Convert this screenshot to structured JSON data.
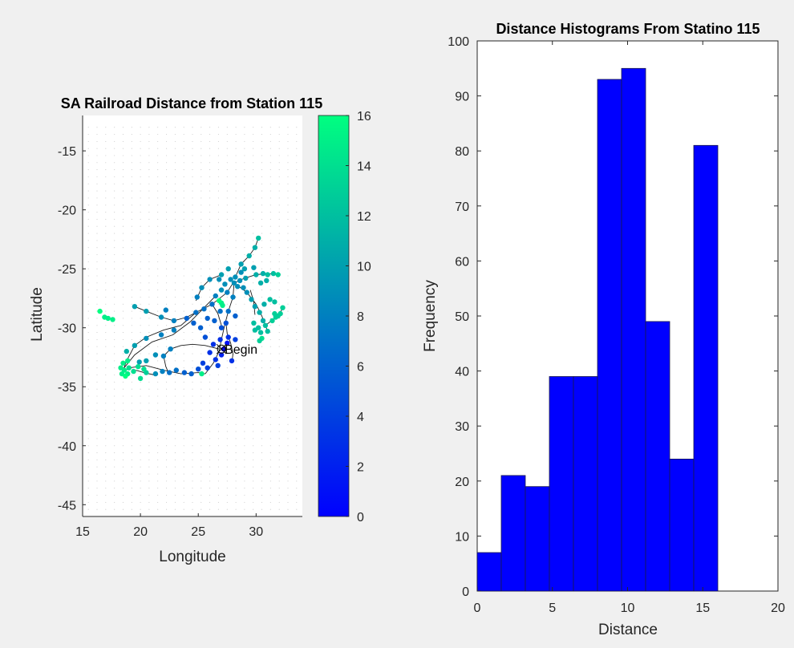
{
  "chart_data": [
    {
      "type": "scatter",
      "title": "SA Railroad Distance from Station 115",
      "xlabel": "Longitude",
      "ylabel": "Latitude",
      "xlim": [
        15,
        34
      ],
      "ylim": [
        -46,
        -12
      ],
      "xticks": [
        "15",
        "20",
        "25",
        "30"
      ],
      "yticks": [
        "-15",
        "-20",
        "-25",
        "-30",
        "-35",
        "-40",
        "-45"
      ],
      "annotation": "Begin",
      "annotation_point": [
        27.0,
        -31.8
      ],
      "background_dots": true,
      "colormap": "winter",
      "colorbar": {
        "lim": [
          0,
          16
        ],
        "ticks": [
          "16",
          "14",
          "12",
          "10",
          "8",
          "6",
          "4",
          "2",
          "0"
        ]
      },
      "rail_lines": [
        [
          [
            18.4,
            -33.9
          ],
          [
            19.0,
            -33.4
          ],
          [
            20.5,
            -33.2
          ],
          [
            22.0,
            -33.6
          ],
          [
            23.5,
            -33.9
          ],
          [
            25.0,
            -33.8
          ],
          [
            25.6,
            -33.9
          ]
        ],
        [
          [
            18.4,
            -33.9
          ],
          [
            18.8,
            -32.8
          ],
          [
            19.5,
            -31.5
          ],
          [
            20.5,
            -30.8
          ],
          [
            22.0,
            -30.2
          ],
          [
            23.5,
            -29.8
          ],
          [
            24.8,
            -28.7
          ],
          [
            26.2,
            -28.0
          ],
          [
            27.5,
            -27.0
          ],
          [
            28.0,
            -26.2
          ]
        ],
        [
          [
            18.5,
            -33.5
          ],
          [
            19.5,
            -32.3
          ],
          [
            21.0,
            -31.2
          ],
          [
            22.8,
            -30.6
          ],
          [
            24.3,
            -29.5
          ],
          [
            25.5,
            -28.3
          ],
          [
            26.5,
            -27.3
          ]
        ],
        [
          [
            25.6,
            -33.9
          ],
          [
            26.3,
            -33.0
          ],
          [
            26.8,
            -32.0
          ],
          [
            27.0,
            -31.0
          ],
          [
            27.3,
            -29.7
          ],
          [
            27.6,
            -28.6
          ],
          [
            28.0,
            -27.4
          ],
          [
            28.1,
            -26.2
          ]
        ],
        [
          [
            27.9,
            -33.0
          ],
          [
            28.0,
            -32.2
          ],
          [
            27.8,
            -31.3
          ],
          [
            27.5,
            -30.5
          ],
          [
            27.4,
            -29.6
          ]
        ],
        [
          [
            22.5,
            -34.0
          ],
          [
            22.2,
            -33.3
          ],
          [
            22.0,
            -32.4
          ],
          [
            22.6,
            -31.8
          ],
          [
            23.5,
            -31.5
          ],
          [
            24.5,
            -31.4
          ],
          [
            25.6,
            -31.5
          ],
          [
            26.8,
            -31.8
          ]
        ],
        [
          [
            19.6,
            -33.6
          ],
          [
            20.3,
            -33.8
          ],
          [
            21.2,
            -34.0
          ]
        ],
        [
          [
            28.1,
            -26.2
          ],
          [
            29.0,
            -25.8
          ],
          [
            30.0,
            -25.5
          ],
          [
            31.0,
            -25.4
          ],
          [
            31.9,
            -25.5
          ]
        ],
        [
          [
            28.2,
            -25.7
          ],
          [
            28.7,
            -24.6
          ],
          [
            29.4,
            -23.9
          ],
          [
            29.9,
            -23.2
          ],
          [
            30.2,
            -22.4
          ]
        ],
        [
          [
            28.1,
            -26.2
          ],
          [
            29.2,
            -27.0
          ],
          [
            30.0,
            -28.0
          ],
          [
            30.5,
            -29.0
          ],
          [
            30.8,
            -29.8
          ],
          [
            31.0,
            -30.3
          ]
        ],
        [
          [
            30.8,
            -29.8
          ],
          [
            31.6,
            -29.2
          ],
          [
            32.1,
            -28.7
          ],
          [
            32.3,
            -28.3
          ]
        ],
        [
          [
            27.0,
            -25.5
          ],
          [
            26.0,
            -25.9
          ],
          [
            25.3,
            -26.6
          ],
          [
            24.8,
            -27.7
          ]
        ],
        [
          [
            24.8,
            -28.7
          ],
          [
            24.0,
            -29.1
          ],
          [
            22.9,
            -29.4
          ],
          [
            21.8,
            -29.1
          ],
          [
            20.5,
            -28.6
          ],
          [
            19.5,
            -28.2
          ]
        ],
        [
          [
            26.2,
            -28.0
          ],
          [
            26.7,
            -28.8
          ],
          [
            27.0,
            -29.8
          ]
        ],
        [
          [
            29.5,
            -26.8
          ],
          [
            29.8,
            -27.8
          ],
          [
            29.9,
            -28.9
          ]
        ]
      ],
      "points_color_scale": "distance 0-16",
      "points": [
        [
          27.2,
          -31.8,
          0
        ],
        [
          27.5,
          -31.3,
          1
        ],
        [
          27.0,
          -32.3,
          2
        ],
        [
          26.5,
          -32.7,
          3
        ],
        [
          26.0,
          -32.1,
          3
        ],
        [
          27.9,
          -32.8,
          3
        ],
        [
          27.6,
          -30.8,
          3
        ],
        [
          25.8,
          -33.4,
          4
        ],
        [
          25.4,
          -33.0,
          4
        ],
        [
          26.7,
          -33.2,
          4
        ],
        [
          28.2,
          -31.0,
          4
        ],
        [
          26.9,
          -31.0,
          3
        ],
        [
          26.3,
          -31.4,
          3
        ],
        [
          25.0,
          -33.5,
          5
        ],
        [
          24.4,
          -33.9,
          6
        ],
        [
          23.8,
          -33.8,
          6
        ],
        [
          23.1,
          -33.6,
          7
        ],
        [
          22.5,
          -33.8,
          7
        ],
        [
          21.9,
          -33.7,
          8
        ],
        [
          21.3,
          -33.9,
          9
        ],
        [
          25.6,
          -30.8,
          5
        ],
        [
          25.2,
          -30.0,
          6
        ],
        [
          24.6,
          -29.6,
          6
        ],
        [
          24.0,
          -29.2,
          6
        ],
        [
          25.8,
          -29.2,
          6
        ],
        [
          26.4,
          -29.4,
          6
        ],
        [
          27.0,
          -30.0,
          5
        ],
        [
          26.2,
          -28.0,
          7
        ],
        [
          25.5,
          -28.4,
          7
        ],
        [
          24.8,
          -28.7,
          7
        ],
        [
          26.9,
          -28.6,
          7
        ],
        [
          27.4,
          -29.6,
          5
        ],
        [
          27.6,
          -28.6,
          7
        ],
        [
          28.2,
          -29.0,
          6
        ],
        [
          26.5,
          -27.3,
          8
        ],
        [
          27.0,
          -26.8,
          9
        ],
        [
          27.5,
          -27.0,
          8
        ],
        [
          28.0,
          -27.4,
          8
        ],
        [
          28.1,
          -26.2,
          9
        ],
        [
          28.4,
          -26.5,
          9
        ],
        [
          27.8,
          -25.9,
          9
        ],
        [
          28.6,
          -26.0,
          9
        ],
        [
          28.9,
          -26.6,
          9
        ],
        [
          27.3,
          -26.3,
          9
        ],
        [
          28.2,
          -25.7,
          9
        ],
        [
          28.7,
          -25.3,
          9
        ],
        [
          29.1,
          -25.8,
          10
        ],
        [
          26.8,
          -25.9,
          9
        ],
        [
          25.3,
          -26.6,
          9
        ],
        [
          24.9,
          -27.4,
          8
        ],
        [
          26.0,
          -25.9,
          9
        ],
        [
          27.0,
          -25.5,
          10
        ],
        [
          28.7,
          -24.6,
          10
        ],
        [
          29.4,
          -23.9,
          11
        ],
        [
          29.9,
          -23.2,
          11
        ],
        [
          30.2,
          -22.4,
          12
        ],
        [
          29.8,
          -24.9,
          10
        ],
        [
          29.0,
          -25.0,
          10
        ],
        [
          27.6,
          -25.0,
          10
        ],
        [
          30.0,
          -25.5,
          11
        ],
        [
          30.6,
          -25.4,
          11
        ],
        [
          31.0,
          -25.5,
          12
        ],
        [
          31.5,
          -25.4,
          12
        ],
        [
          31.9,
          -25.5,
          13
        ],
        [
          30.4,
          -26.2,
          11
        ],
        [
          30.9,
          -26.0,
          11
        ],
        [
          29.2,
          -27.0,
          9
        ],
        [
          29.6,
          -27.6,
          10
        ],
        [
          29.9,
          -28.2,
          10
        ],
        [
          30.3,
          -28.7,
          11
        ],
        [
          30.6,
          -29.4,
          11
        ],
        [
          30.8,
          -29.8,
          12
        ],
        [
          31.0,
          -30.3,
          12
        ],
        [
          30.2,
          -30.0,
          12
        ],
        [
          29.8,
          -29.6,
          12
        ],
        [
          30.4,
          -30.4,
          12
        ],
        [
          29.9,
          -30.2,
          12
        ],
        [
          31.4,
          -29.4,
          13
        ],
        [
          31.7,
          -29.1,
          13
        ],
        [
          32.1,
          -28.8,
          13
        ],
        [
          32.3,
          -28.3,
          13
        ],
        [
          31.9,
          -29.0,
          13
        ],
        [
          30.7,
          -28.0,
          11
        ],
        [
          31.2,
          -27.6,
          12
        ],
        [
          31.6,
          -27.8,
          12
        ],
        [
          22.0,
          -32.4,
          8
        ],
        [
          22.6,
          -31.8,
          8
        ],
        [
          21.3,
          -32.3,
          9
        ],
        [
          20.5,
          -32.8,
          10
        ],
        [
          19.9,
          -32.9,
          10
        ],
        [
          22.9,
          -30.2,
          8
        ],
        [
          21.8,
          -30.6,
          8
        ],
        [
          20.5,
          -30.9,
          9
        ],
        [
          19.5,
          -31.5,
          10
        ],
        [
          18.8,
          -32.0,
          11
        ],
        [
          22.9,
          -29.4,
          8
        ],
        [
          21.8,
          -29.1,
          9
        ],
        [
          20.5,
          -28.6,
          10
        ],
        [
          19.5,
          -28.2,
          10
        ],
        [
          22.2,
          -28.5,
          8
        ],
        [
          18.4,
          -33.9,
          15
        ],
        [
          18.6,
          -33.6,
          15
        ],
        [
          18.9,
          -33.9,
          15
        ],
        [
          19.0,
          -33.4,
          14
        ],
        [
          18.3,
          -33.4,
          15
        ],
        [
          18.7,
          -34.1,
          16
        ],
        [
          19.4,
          -33.7,
          14
        ],
        [
          20.0,
          -34.3,
          14
        ],
        [
          20.5,
          -33.8,
          13
        ],
        [
          20.3,
          -33.5,
          14
        ],
        [
          19.8,
          -33.3,
          14
        ],
        [
          18.9,
          -32.8,
          15
        ],
        [
          18.5,
          -33.0,
          15
        ],
        [
          17.2,
          -29.2,
          15
        ],
        [
          17.6,
          -29.3,
          15
        ],
        [
          16.5,
          -28.6,
          16
        ],
        [
          16.9,
          -29.1,
          15
        ],
        [
          27.0,
          -27.9,
          15
        ],
        [
          26.8,
          -27.7,
          16
        ],
        [
          27.1,
          -28.1,
          15
        ],
        [
          25.3,
          -33.9,
          15
        ],
        [
          30.5,
          -30.9,
          14
        ],
        [
          30.3,
          -31.1,
          13
        ],
        [
          31.6,
          -28.8,
          13
        ]
      ]
    },
    {
      "type": "bar",
      "title": "Distance Histograms From Statino 115",
      "xlabel": "Distance",
      "ylabel": "Frequency",
      "xlim": [
        0,
        20
      ],
      "ylim": [
        0,
        100
      ],
      "xticks": [
        "0",
        "5",
        "10",
        "15",
        "20"
      ],
      "yticks": [
        "0",
        "10",
        "20",
        "30",
        "40",
        "50",
        "60",
        "70",
        "80",
        "90",
        "100"
      ],
      "bin_edges": [
        0,
        1.6,
        3.2,
        4.8,
        6.4,
        8.0,
        9.6,
        11.2,
        12.8,
        14.4,
        16.0
      ],
      "values": [
        7,
        21,
        19,
        39,
        39,
        93,
        95,
        49,
        24,
        81
      ],
      "color": "#0000ff"
    }
  ]
}
